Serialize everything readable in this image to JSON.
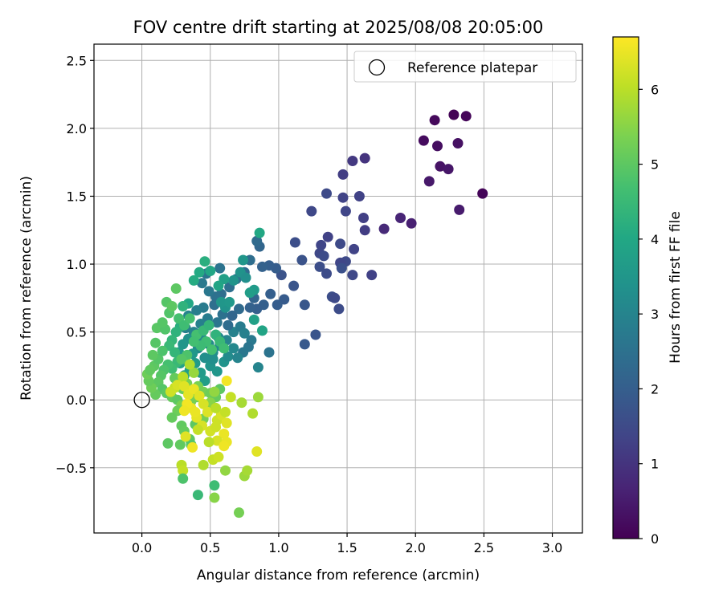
{
  "chart_data": {
    "type": "scatter",
    "title": "FOV centre drift starting at 2025/08/08 20:05:00",
    "xlabel": "Angular distance from reference (arcmin)",
    "ylabel": "Rotation from reference (arcmin)",
    "xlim": [
      -0.35,
      3.22
    ],
    "ylim": [
      -0.98,
      2.62
    ],
    "xticks": [
      "0.0",
      "0.5",
      "1.0",
      "1.5",
      "2.0",
      "2.5",
      "3.0"
    ],
    "xtick_values": [
      0.0,
      0.5,
      1.0,
      1.5,
      2.0,
      2.5,
      3.0
    ],
    "yticks": [
      "−0.5",
      "0.0",
      "0.5",
      "1.0",
      "1.5",
      "2.0",
      "2.5"
    ],
    "ytick_values": [
      -0.5,
      0.0,
      0.5,
      1.0,
      1.5,
      2.0,
      2.5
    ],
    "grid": true,
    "legend": {
      "position": "top-right",
      "entries": [
        {
          "label": "Reference platepar",
          "marker": "open-circle"
        }
      ]
    },
    "reference_point": {
      "x": 0.0,
      "y": 0.0
    },
    "colorbar": {
      "label": "Hours from first FF file",
      "colormap": "viridis",
      "range": [
        0,
        6.7
      ],
      "ticks": [
        "0",
        "1",
        "2",
        "3",
        "4",
        "5",
        "6"
      ],
      "tick_values": [
        0,
        1,
        2,
        3,
        4,
        5,
        6
      ]
    },
    "points": [
      [
        2.28,
        2.1,
        0.05
      ],
      [
        2.37,
        2.09,
        0.1
      ],
      [
        2.14,
        2.06,
        0.15
      ],
      [
        2.06,
        1.91,
        0.2
      ],
      [
        2.16,
        1.87,
        0.25
      ],
      [
        2.31,
        1.89,
        0.3
      ],
      [
        2.18,
        1.72,
        0.35
      ],
      [
        2.24,
        1.7,
        0.4
      ],
      [
        2.1,
        1.61,
        0.45
      ],
      [
        2.49,
        1.52,
        0.08
      ],
      [
        2.32,
        1.4,
        0.5
      ],
      [
        1.97,
        1.3,
        0.6
      ],
      [
        1.89,
        1.34,
        0.7
      ],
      [
        1.77,
        1.26,
        0.8
      ],
      [
        1.63,
        1.78,
        1.0
      ],
      [
        1.54,
        1.76,
        1.1
      ],
      [
        1.47,
        1.66,
        1.2
      ],
      [
        1.59,
        1.5,
        1.3
      ],
      [
        1.47,
        1.49,
        1.35
      ],
      [
        1.35,
        1.52,
        1.5
      ],
      [
        1.62,
        1.34,
        1.25
      ],
      [
        1.49,
        1.39,
        1.4
      ],
      [
        1.24,
        1.39,
        1.45
      ],
      [
        1.63,
        1.25,
        1.2
      ],
      [
        1.36,
        1.2,
        1.3
      ],
      [
        1.31,
        1.14,
        1.4
      ],
      [
        1.45,
        1.15,
        1.5
      ],
      [
        1.55,
        1.11,
        1.35
      ],
      [
        1.3,
        1.08,
        1.45
      ],
      [
        1.33,
        1.06,
        1.55
      ],
      [
        1.12,
        1.16,
        1.6
      ],
      [
        1.17,
        1.03,
        1.7
      ],
      [
        1.49,
        1.02,
        1.5
      ],
      [
        1.45,
        1.01,
        1.4
      ],
      [
        1.3,
        0.98,
        1.6
      ],
      [
        1.46,
        0.97,
        1.65
      ],
      [
        1.35,
        0.93,
        1.55
      ],
      [
        1.54,
        0.92,
        1.45
      ],
      [
        1.68,
        0.92,
        1.3
      ],
      [
        1.02,
        0.92,
        1.7
      ],
      [
        1.11,
        0.84,
        1.75
      ],
      [
        1.39,
        0.76,
        1.6
      ],
      [
        1.41,
        0.75,
        1.5
      ],
      [
        1.44,
        0.67,
        1.55
      ],
      [
        1.19,
        0.7,
        1.8
      ],
      [
        1.27,
        0.48,
        1.75
      ],
      [
        1.19,
        0.41,
        1.85
      ],
      [
        1.04,
        0.74,
        1.9
      ],
      [
        0.99,
        0.7,
        1.95
      ],
      [
        0.94,
        0.78,
        2.0
      ],
      [
        0.98,
        0.97,
        1.95
      ],
      [
        0.93,
        0.99,
        2.0
      ],
      [
        0.88,
        0.98,
        2.1
      ],
      [
        0.89,
        0.7,
        2.05
      ],
      [
        0.84,
        0.67,
        2.0
      ],
      [
        0.79,
        0.68,
        2.1
      ],
      [
        0.82,
        0.75,
        2.15
      ],
      [
        0.86,
        1.13,
        2.2
      ],
      [
        0.84,
        1.17,
        2.3
      ],
      [
        0.79,
        1.03,
        2.4
      ],
      [
        0.75,
        0.94,
        2.35
      ],
      [
        0.69,
        0.89,
        2.5
      ],
      [
        0.64,
        0.83,
        2.45
      ],
      [
        0.58,
        0.78,
        2.4
      ],
      [
        0.54,
        0.76,
        2.5
      ],
      [
        0.57,
        0.97,
        2.55
      ],
      [
        0.47,
        0.93,
        2.6
      ],
      [
        0.44,
        0.86,
        2.7
      ],
      [
        0.49,
        0.8,
        2.65
      ],
      [
        0.45,
        0.68,
        2.75
      ],
      [
        0.4,
        0.66,
        2.85
      ],
      [
        0.34,
        0.62,
        3.0
      ],
      [
        0.32,
        0.53,
        2.9
      ],
      [
        0.38,
        0.5,
        2.95
      ],
      [
        0.44,
        0.45,
        3.05
      ],
      [
        0.49,
        0.41,
        3.15
      ],
      [
        0.52,
        0.35,
        3.25
      ],
      [
        0.57,
        0.4,
        3.1
      ],
      [
        0.62,
        0.44,
        3.0
      ],
      [
        0.67,
        0.5,
        2.95
      ],
      [
        0.72,
        0.54,
        2.8
      ],
      [
        0.75,
        0.49,
        2.9
      ],
      [
        0.8,
        0.44,
        2.7
      ],
      [
        0.78,
        0.39,
        2.6
      ],
      [
        0.74,
        0.35,
        2.65
      ],
      [
        0.85,
        0.24,
        3.0
      ],
      [
        0.93,
        0.35,
        2.55
      ],
      [
        0.71,
        0.67,
        2.3
      ],
      [
        0.66,
        0.62,
        2.2
      ],
      [
        0.63,
        0.55,
        2.35
      ],
      [
        0.59,
        0.63,
        2.5
      ],
      [
        0.55,
        0.57,
        2.6
      ],
      [
        0.53,
        0.7,
        2.45
      ],
      [
        0.48,
        0.6,
        2.8
      ],
      [
        0.43,
        0.56,
        2.9
      ],
      [
        0.41,
        0.38,
        3.2
      ],
      [
        0.46,
        0.31,
        3.3
      ],
      [
        0.5,
        0.25,
        3.45
      ],
      [
        0.55,
        0.21,
        3.5
      ],
      [
        0.6,
        0.28,
        3.4
      ],
      [
        0.63,
        0.32,
        3.2
      ],
      [
        0.67,
        0.38,
        3.1
      ],
      [
        0.7,
        0.31,
        3.0
      ],
      [
        0.34,
        0.45,
        3.35
      ],
      [
        0.3,
        0.41,
        3.5
      ],
      [
        0.27,
        0.35,
        3.6
      ],
      [
        0.37,
        0.34,
        3.55
      ],
      [
        0.39,
        0.27,
        3.65
      ],
      [
        0.35,
        0.22,
        3.7
      ],
      [
        0.31,
        0.18,
        3.8
      ],
      [
        0.28,
        0.27,
        3.75
      ],
      [
        0.43,
        0.2,
        3.6
      ],
      [
        0.46,
        0.14,
        3.7
      ],
      [
        0.52,
        0.3,
        3.3
      ],
      [
        0.56,
        0.46,
        3.15
      ],
      [
        0.61,
        0.68,
        3.4
      ],
      [
        0.58,
        0.72,
        3.5
      ],
      [
        0.64,
        0.72,
        3.55
      ],
      [
        0.67,
        0.88,
        3.45
      ],
      [
        0.72,
        0.94,
        3.4
      ],
      [
        0.76,
        0.9,
        3.3
      ],
      [
        0.74,
        1.03,
        3.5
      ],
      [
        0.82,
        0.81,
        3.6
      ],
      [
        0.79,
        0.79,
        3.7
      ],
      [
        0.86,
        1.23,
        4.0
      ],
      [
        0.82,
        0.59,
        3.8
      ],
      [
        0.88,
        0.51,
        3.9
      ],
      [
        0.6,
        0.89,
        3.8
      ],
      [
        0.56,
        0.84,
        3.9
      ],
      [
        0.5,
        0.95,
        3.95
      ],
      [
        0.46,
        1.02,
        4.2
      ],
      [
        0.42,
        0.94,
        4.05
      ],
      [
        0.38,
        0.88,
        4.1
      ],
      [
        0.34,
        0.71,
        4.0
      ],
      [
        0.3,
        0.69,
        4.3
      ],
      [
        0.28,
        0.54,
        4.2
      ],
      [
        0.25,
        0.5,
        4.3
      ],
      [
        0.22,
        0.44,
        4.4
      ],
      [
        0.2,
        0.4,
        4.5
      ],
      [
        0.24,
        0.35,
        4.4
      ],
      [
        0.26,
        0.28,
        4.5
      ],
      [
        0.22,
        0.23,
        4.6
      ],
      [
        0.19,
        0.26,
        4.7
      ],
      [
        0.16,
        0.22,
        4.8
      ],
      [
        0.14,
        0.18,
        4.9
      ],
      [
        0.12,
        0.13,
        5.0
      ],
      [
        0.15,
        0.08,
        4.9
      ],
      [
        0.18,
        0.05,
        5.0
      ],
      [
        0.22,
        0.02,
        5.1
      ],
      [
        0.26,
        0.0,
        5.0
      ],
      [
        0.1,
        0.04,
        5.1
      ],
      [
        0.07,
        0.09,
        5.2
      ],
      [
        0.05,
        0.14,
        5.1
      ],
      [
        0.04,
        0.19,
        5.2
      ],
      [
        0.09,
        0.25,
        5.0
      ],
      [
        0.12,
        0.3,
        4.9
      ],
      [
        0.15,
        0.36,
        4.8
      ],
      [
        0.1,
        0.42,
        4.9
      ],
      [
        0.08,
        0.33,
        5.0
      ],
      [
        0.06,
        0.22,
        5.05
      ],
      [
        0.11,
        0.53,
        4.95
      ],
      [
        0.17,
        0.52,
        4.85
      ],
      [
        0.15,
        0.57,
        4.9
      ],
      [
        0.2,
        0.64,
        4.85
      ],
      [
        0.18,
        0.72,
        4.9
      ],
      [
        0.25,
        0.82,
        5.0
      ],
      [
        0.22,
        0.69,
        5.0
      ],
      [
        0.27,
        0.6,
        4.7
      ],
      [
        0.31,
        0.55,
        4.6
      ],
      [
        0.35,
        0.6,
        4.7
      ],
      [
        0.4,
        0.48,
        4.7
      ],
      [
        0.45,
        0.51,
        4.5
      ],
      [
        0.49,
        0.55,
        4.4
      ],
      [
        0.54,
        0.48,
        4.3
      ],
      [
        0.57,
        0.43,
        4.5
      ],
      [
        0.6,
        0.38,
        4.6
      ],
      [
        0.51,
        0.37,
        4.7
      ],
      [
        0.47,
        0.43,
        4.6
      ],
      [
        0.43,
        0.4,
        4.55
      ],
      [
        0.38,
        0.43,
        4.65
      ],
      [
        0.33,
        0.33,
        4.8
      ],
      [
        0.29,
        0.3,
        4.9
      ],
      [
        0.24,
        0.16,
        5.1
      ],
      [
        0.27,
        0.1,
        5.15
      ],
      [
        0.3,
        0.08,
        5.2
      ],
      [
        0.33,
        0.12,
        5.3
      ],
      [
        0.37,
        0.06,
        5.25
      ],
      [
        0.41,
        0.1,
        5.35
      ],
      [
        0.45,
        0.06,
        5.3
      ],
      [
        0.5,
        0.05,
        5.2
      ],
      [
        0.54,
        0.02,
        5.1
      ],
      [
        0.57,
        0.08,
        5.0
      ],
      [
        0.4,
        0.02,
        5.2
      ],
      [
        0.36,
        -0.01,
        5.3
      ],
      [
        0.33,
        -0.06,
        5.4
      ],
      [
        0.29,
        -0.04,
        5.35
      ],
      [
        0.26,
        -0.08,
        5.2
      ],
      [
        0.22,
        -0.13,
        5.1
      ],
      [
        0.29,
        -0.19,
        5.05
      ],
      [
        0.31,
        -0.23,
        5.1
      ],
      [
        0.35,
        -0.29,
        5.0
      ],
      [
        0.19,
        -0.32,
        5.0
      ],
      [
        0.28,
        -0.33,
        5.05
      ],
      [
        0.36,
        -0.33,
        4.9
      ],
      [
        0.39,
        -0.18,
        5.0
      ],
      [
        0.45,
        -0.14,
        5.3
      ],
      [
        0.5,
        -0.02,
        5.5
      ],
      [
        0.53,
        0.06,
        5.6
      ],
      [
        0.38,
        0.2,
        5.65
      ],
      [
        0.35,
        0.26,
        5.9
      ],
      [
        0.3,
        0.17,
        6.0
      ],
      [
        0.24,
        0.09,
        6.1
      ],
      [
        0.21,
        0.06,
        6.2
      ],
      [
        0.26,
        0.11,
        6.3
      ],
      [
        0.31,
        0.1,
        6.4
      ],
      [
        0.34,
        0.04,
        6.45
      ],
      [
        0.38,
        0.08,
        6.5
      ],
      [
        0.42,
        0.03,
        6.4
      ],
      [
        0.45,
        -0.03,
        6.3
      ],
      [
        0.48,
        -0.09,
        6.35
      ],
      [
        0.36,
        -0.06,
        6.5
      ],
      [
        0.33,
        -0.03,
        6.6
      ],
      [
        0.31,
        -0.08,
        6.55
      ],
      [
        0.4,
        -0.13,
        6.45
      ],
      [
        0.44,
        -0.19,
        6.3
      ],
      [
        0.5,
        -0.23,
        6.25
      ],
      [
        0.55,
        -0.15,
        6.2
      ],
      [
        0.58,
        -0.11,
        6.3
      ],
      [
        0.61,
        -0.09,
        6.1
      ],
      [
        0.54,
        -0.06,
        6.0
      ],
      [
        0.62,
        -0.17,
        6.4
      ],
      [
        0.6,
        -0.25,
        6.5
      ],
      [
        0.55,
        -0.3,
        6.3
      ],
      [
        0.62,
        -0.31,
        6.5
      ],
      [
        0.6,
        -0.34,
        6.55
      ],
      [
        0.49,
        -0.31,
        6.0
      ],
      [
        0.52,
        -0.44,
        6.1
      ],
      [
        0.56,
        -0.42,
        6.2
      ],
      [
        0.45,
        -0.48,
        5.9
      ],
      [
        0.37,
        -0.35,
        6.55
      ],
      [
        0.32,
        -0.27,
        6.4
      ],
      [
        0.29,
        -0.48,
        6.0
      ],
      [
        0.3,
        -0.52,
        6.1
      ],
      [
        0.3,
        -0.58,
        4.8
      ],
      [
        0.41,
        -0.7,
        4.5
      ],
      [
        0.53,
        -0.63,
        4.6
      ],
      [
        0.53,
        -0.72,
        5.5
      ],
      [
        0.71,
        -0.83,
        5.3
      ],
      [
        0.61,
        -0.52,
        5.6
      ],
      [
        0.75,
        -0.56,
        5.7
      ],
      [
        0.77,
        -0.52,
        5.8
      ],
      [
        0.84,
        -0.38,
        6.4
      ],
      [
        0.81,
        -0.1,
        5.9
      ],
      [
        0.73,
        -0.02,
        5.8
      ],
      [
        0.85,
        0.02,
        5.7
      ],
      [
        0.65,
        0.02,
        6.1
      ],
      [
        0.62,
        0.14,
        6.6
      ],
      [
        0.54,
        -0.2,
        6.2
      ],
      [
        0.41,
        -0.22,
        6.1
      ],
      [
        0.39,
        -0.09,
        6.5
      ]
    ]
  }
}
